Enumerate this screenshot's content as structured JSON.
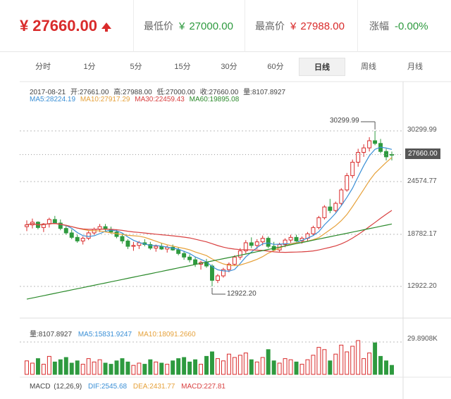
{
  "header": {
    "currency_symbol": "¥",
    "price": "27660.00",
    "low": {
      "label": "最低价",
      "currency": "¥",
      "value": "27000.00"
    },
    "high": {
      "label": "最高价",
      "currency": "¥",
      "value": "27988.00"
    },
    "change": {
      "label": "涨幅",
      "value": "-0.00%"
    }
  },
  "tabs": [
    {
      "label": "分时"
    },
    {
      "label": "1分"
    },
    {
      "label": "5分"
    },
    {
      "label": "15分"
    },
    {
      "label": "30分"
    },
    {
      "label": "60分"
    },
    {
      "label": "日线",
      "active": true
    },
    {
      "label": "周线"
    },
    {
      "label": "月线"
    }
  ],
  "info": {
    "date": "2017-08-21",
    "open": "开:27661.00",
    "high": "高:27988.00",
    "low": "低:27000.00",
    "close": "收:27660.00",
    "volume": "量:8107.8927",
    "ma5": "MA5:28224.19",
    "ma10": "MA10:27917.29",
    "ma30": "MA30:22459.43",
    "ma60": "MA60:19895.08"
  },
  "axis": {
    "y_labels": [
      "30299.99",
      "24574.77",
      "18782.17",
      "12922.20"
    ],
    "current": "27660.00",
    "max_annot": "30299.99",
    "min_annot": "12922.20"
  },
  "volume_info": {
    "vol": "量:8107.8927",
    "ma5": "MA5:15831.9247",
    "ma10": "MA10:18091.2660",
    "axis_max": "29.8908K"
  },
  "macd_info": {
    "title": "MACD",
    "params": "(12,26,9)",
    "dif": "DIF:2545.68",
    "dea": "DEA:2431.77",
    "macd": "MACD:227.81"
  },
  "colors": {
    "up": "#d92b2b",
    "down": "#2e9a3f",
    "ma5": "#3a8fd6",
    "ma10": "#e6a13a",
    "ma30": "#d94040",
    "ma60": "#2b8a2b"
  },
  "chart_data": {
    "type": "candlestick",
    "candles": [
      [
        19600,
        20300,
        19100,
        19800
      ],
      [
        19800,
        20500,
        19400,
        20100
      ],
      [
        20100,
        20200,
        19300,
        19500
      ],
      [
        19500,
        20000,
        19000,
        19900
      ],
      [
        19900,
        20600,
        19500,
        20400
      ],
      [
        20400,
        20800,
        19900,
        20000
      ],
      [
        20000,
        20400,
        19200,
        19400
      ],
      [
        19400,
        19800,
        18700,
        18900
      ],
      [
        18900,
        19300,
        18200,
        18400
      ],
      [
        18400,
        18700,
        17800,
        18000
      ],
      [
        18000,
        18500,
        17600,
        18300
      ],
      [
        18300,
        19100,
        18100,
        18900
      ],
      [
        18900,
        19500,
        18700,
        19300
      ],
      [
        19300,
        19900,
        19000,
        19600
      ],
      [
        19600,
        19900,
        19100,
        19300
      ],
      [
        19300,
        19600,
        18800,
        19000
      ],
      [
        19000,
        19300,
        18300,
        18500
      ],
      [
        18500,
        18800,
        17700,
        18000
      ],
      [
        18000,
        18200,
        17100,
        17400
      ],
      [
        17400,
        17900,
        16900,
        17500
      ],
      [
        17500,
        18000,
        17100,
        17800
      ],
      [
        17800,
        18200,
        17400,
        17600
      ],
      [
        17600,
        17900,
        17000,
        17200
      ],
      [
        17200,
        17600,
        16800,
        17400
      ],
      [
        17400,
        17800,
        17000,
        17100
      ],
      [
        17100,
        17500,
        16700,
        17300
      ],
      [
        17300,
        17600,
        16900,
        17000
      ],
      [
        17000,
        17300,
        16400,
        16600
      ],
      [
        16600,
        16900,
        15900,
        16200
      ],
      [
        16200,
        16500,
        15600,
        15900
      ],
      [
        15900,
        16200,
        15100,
        15400
      ],
      [
        15400,
        15800,
        14800,
        15600
      ],
      [
        15600,
        16000,
        15000,
        15200
      ],
      [
        15200,
        15400,
        12922,
        13600
      ],
      [
        13600,
        14300,
        13300,
        14100
      ],
      [
        14100,
        15000,
        13900,
        14800
      ],
      [
        14800,
        15600,
        14500,
        15400
      ],
      [
        15400,
        16400,
        15200,
        16200
      ],
      [
        16200,
        17200,
        15900,
        16900
      ],
      [
        16900,
        18100,
        16600,
        17800
      ],
      [
        17800,
        18400,
        17200,
        17500
      ],
      [
        17500,
        18200,
        17100,
        17900
      ],
      [
        17900,
        18600,
        17500,
        18300
      ],
      [
        18300,
        18500,
        17200,
        17400
      ],
      [
        17400,
        17900,
        16900,
        17000
      ],
      [
        17000,
        17800,
        16800,
        17600
      ],
      [
        17600,
        18300,
        17300,
        18100
      ],
      [
        18100,
        18700,
        17800,
        18400
      ],
      [
        18400,
        18700,
        17900,
        18000
      ],
      [
        18000,
        18500,
        17700,
        18300
      ],
      [
        18300,
        19000,
        18000,
        18800
      ],
      [
        18800,
        19700,
        18600,
        19500
      ],
      [
        19500,
        20800,
        19300,
        20600
      ],
      [
        20600,
        22000,
        20400,
        21800
      ],
      [
        21800,
        22700,
        21100,
        21400
      ],
      [
        21400,
        22400,
        21200,
        22200
      ],
      [
        22200,
        23900,
        22000,
        23700
      ],
      [
        23700,
        25600,
        23500,
        25300
      ],
      [
        25300,
        27100,
        25000,
        26800
      ],
      [
        26800,
        28300,
        26300,
        27900
      ],
      [
        27900,
        28800,
        27400,
        28400
      ],
      [
        28400,
        29600,
        28000,
        29200
      ],
      [
        29200,
        30299,
        28700,
        28900
      ],
      [
        28900,
        29400,
        27800,
        28000
      ],
      [
        28000,
        28300,
        27000,
        27400
      ],
      [
        27661,
        27988,
        27000,
        27660
      ]
    ],
    "volume": [
      12,
      10,
      14,
      9,
      16,
      11,
      13,
      15,
      10,
      12,
      9,
      14,
      11,
      13,
      10,
      9,
      12,
      14,
      11,
      8,
      10,
      9,
      13,
      11,
      10,
      9,
      12,
      14,
      15,
      11,
      13,
      9,
      16,
      20,
      14,
      12,
      18,
      15,
      17,
      19,
      13,
      11,
      15,
      22,
      12,
      10,
      14,
      13,
      11,
      9,
      13,
      17,
      24,
      22,
      12,
      18,
      26,
      20,
      25,
      30,
      14,
      19,
      28,
      16,
      12,
      8
    ]
  }
}
